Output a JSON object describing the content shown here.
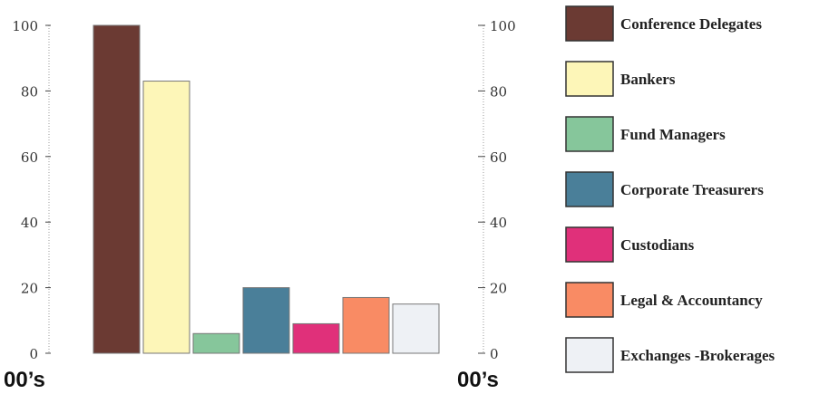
{
  "chart_data": {
    "type": "bar",
    "categories": [
      "Conference Delegates",
      "Bankers",
      "Fund Managers",
      "Corporate Treasurers",
      "Custodians",
      "Legal & Accountancy",
      "Exchanges - Brokerages"
    ],
    "values": [
      100,
      83,
      6,
      20,
      9,
      17,
      15
    ],
    "colors": [
      "#6b3a33",
      "#fdf6b8",
      "#86c69b",
      "#4a7f99",
      "#e0307a",
      "#f98b64",
      "#eef1f5"
    ],
    "ylim": [
      0,
      100
    ],
    "y_ticks": [
      "100",
      "80",
      "60",
      "40",
      "20",
      "0"
    ],
    "y_ticks_right": [
      "100",
      "80",
      "60",
      "40",
      "20",
      "0"
    ],
    "unit_label_left": "00’s",
    "unit_label_right": "00’s",
    "legend": [
      "Conference Delegates",
      "Bankers",
      "Fund Managers",
      "Corporate Treasurers",
      "Custodians",
      "Legal & Accountancy",
      "Exchanges -Brokerages"
    ],
    "legend_position": "right",
    "grid": false
  }
}
